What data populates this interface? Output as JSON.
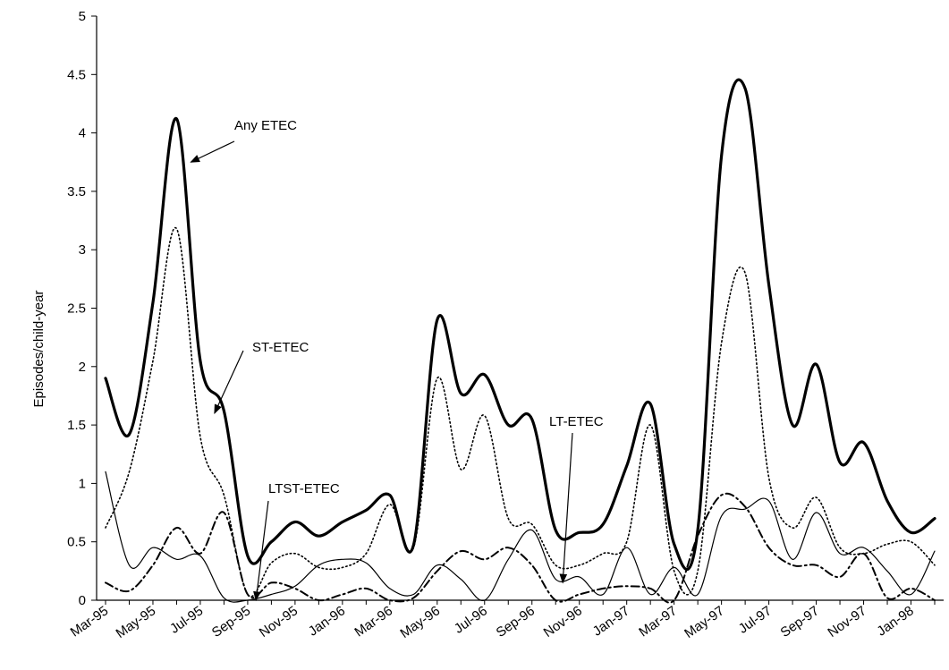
{
  "chart_data": {
    "type": "line",
    "title": "",
    "xlabel": "",
    "ylabel": "Episodes/child-year",
    "ylim": [
      0,
      5
    ],
    "yticks": [
      "0",
      "0.5",
      "1",
      "1.5",
      "2",
      "2.5",
      "3",
      "3.5",
      "4",
      "4.5",
      "5"
    ],
    "x": [
      "Mar-95",
      "Apr-95",
      "May-95",
      "Jun-95",
      "Jul-95",
      "Aug-95",
      "Sep-95",
      "Oct-95",
      "Nov-95",
      "Dec-95",
      "Jan-96",
      "Feb-96",
      "Mar-96",
      "Apr-96",
      "May-96",
      "Jun-96",
      "Jul-96",
      "Aug-96",
      "Sep-96",
      "Oct-96",
      "Nov-96",
      "Dec-96",
      "Jan-97",
      "Feb-97",
      "Mar-97",
      "Apr-97",
      "May-97",
      "Jun-97",
      "Jul-97",
      "Aug-97",
      "Sep-97",
      "Oct-97",
      "Nov-97",
      "Dec-97",
      "Jan-98",
      "Feb-98"
    ],
    "xtick_labels": [
      "Mar-95",
      "May-95",
      "Jul-95",
      "Sep-95",
      "Nov-95",
      "Jan-96",
      "Mar-96",
      "May-96",
      "Jul-96",
      "Sep-96",
      "Nov-96",
      "Jan-97",
      "Mar-97",
      "May-97",
      "Jul-97",
      "Sep-97",
      "Nov-97",
      "Jan-98"
    ],
    "grid": false,
    "series": [
      {
        "name": "Any ETEC",
        "style": "solid-thick",
        "values": [
          1.9,
          1.42,
          2.55,
          4.12,
          2.05,
          1.62,
          0.38,
          0.5,
          0.67,
          0.55,
          0.67,
          0.77,
          0.9,
          0.47,
          2.4,
          1.77,
          1.93,
          1.5,
          1.55,
          0.6,
          0.58,
          0.65,
          1.15,
          1.68,
          0.48,
          0.6,
          3.8,
          4.38,
          2.7,
          1.5,
          2.02,
          1.18,
          1.35,
          0.85,
          0.58,
          0.7
        ]
      },
      {
        "name": "ST-ETEC",
        "style": "dotted",
        "values": [
          0.62,
          1.1,
          2.05,
          3.18,
          1.4,
          0.9,
          0.05,
          0.32,
          0.4,
          0.28,
          0.28,
          0.4,
          0.82,
          0.45,
          1.9,
          1.12,
          1.58,
          0.7,
          0.65,
          0.3,
          0.3,
          0.4,
          0.5,
          1.5,
          0.25,
          0.25,
          2.2,
          2.8,
          1.05,
          0.62,
          0.88,
          0.45,
          0.4,
          0.48,
          0.5,
          0.3
        ]
      },
      {
        "name": "LT-ETEC",
        "style": "dash-dot",
        "values": [
          0.15,
          0.08,
          0.3,
          0.62,
          0.4,
          0.75,
          0.05,
          0.15,
          0.1,
          0.0,
          0.05,
          0.1,
          0.0,
          0.02,
          0.25,
          0.42,
          0.35,
          0.45,
          0.3,
          0.0,
          0.05,
          0.1,
          0.12,
          0.1,
          0.0,
          0.55,
          0.9,
          0.8,
          0.45,
          0.3,
          0.3,
          0.2,
          0.4,
          0.02,
          0.1,
          0.0
        ]
      },
      {
        "name": "LTST-ETEC",
        "style": "solid-thin",
        "values": [
          1.1,
          0.3,
          0.45,
          0.35,
          0.38,
          0.02,
          0.0,
          0.05,
          0.12,
          0.3,
          0.35,
          0.32,
          0.1,
          0.05,
          0.3,
          0.18,
          0.0,
          0.35,
          0.6,
          0.18,
          0.2,
          0.05,
          0.45,
          0.05,
          0.28,
          0.05,
          0.72,
          0.78,
          0.85,
          0.35,
          0.75,
          0.4,
          0.45,
          0.25,
          0.05,
          0.42
        ]
      }
    ],
    "annotations": [
      {
        "text": "Any ETEC",
        "series": "Any ETEC",
        "target_index": 3.6,
        "target_value": 3.75
      },
      {
        "text": "ST-ETEC",
        "series": "ST-ETEC",
        "target_index": 4.6,
        "target_value": 1.6
      },
      {
        "text": "LTST-ETEC",
        "series": "LTST-ETEC",
        "target_index": 6.35,
        "target_value": 0.0
      },
      {
        "text": "LT-ETEC",
        "series": "LT-ETEC",
        "target_index": 19.3,
        "target_value": 0.15
      }
    ]
  }
}
